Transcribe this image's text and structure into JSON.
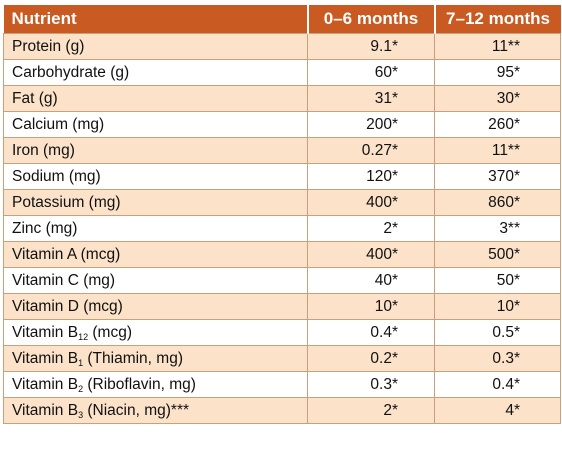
{
  "table": {
    "headers": [
      "Nutrient",
      "0–6 months",
      "7–12 months"
    ],
    "rows": [
      {
        "name": "Protein (g)",
        "a": "9.1*",
        "b": "11**"
      },
      {
        "name": "Carbohydrate (g)",
        "a": "60*",
        "b": "95*"
      },
      {
        "name": "Fat (g)",
        "a": "31*",
        "b": "30*"
      },
      {
        "name": "Calcium (mg)",
        "a": "200*",
        "b": "260*"
      },
      {
        "name": "Iron (mg)",
        "a": "0.27*",
        "b": "11**"
      },
      {
        "name": "Sodium (mg)",
        "a": "120*",
        "b": "370*"
      },
      {
        "name": "Potassium (mg)",
        "a": "400*",
        "b": "860*"
      },
      {
        "name": "Zinc (mg)",
        "a": "2*",
        "b": "3**"
      },
      {
        "name": "Vitamin A (mcg)",
        "a": "400*",
        "b": "500*"
      },
      {
        "name": "Vitamin C (mg)",
        "a": "40*",
        "b": "50*"
      },
      {
        "name": "Vitamin D (mcg)",
        "a": "10*",
        "b": "10*"
      },
      {
        "name": "Vitamin B",
        "sub": "12",
        "rest": " (mcg)",
        "a": "0.4*",
        "b": "0.5*"
      },
      {
        "name": "Vitamin B",
        "sub": "1",
        "rest": " (Thiamin, mg)",
        "a": "0.2*",
        "b": "0.3*"
      },
      {
        "name": "Vitamin B",
        "sub": "2",
        "rest": " (Riboflavin, mg)",
        "a": "0.3*",
        "b": "0.4*"
      },
      {
        "name": "Vitamin B",
        "sub": "3",
        "rest": " (Niacin, mg)***",
        "a": "2*",
        "b": "4*"
      }
    ]
  },
  "colors": {
    "header": "#c85a22",
    "stripe": "#fbe2c9",
    "border": "#c9a079"
  }
}
